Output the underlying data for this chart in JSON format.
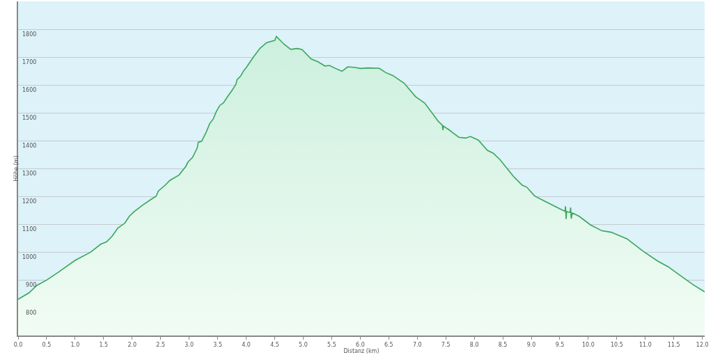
{
  "chart_data": {
    "type": "area",
    "xlabel": "Distanz (km)",
    "ylabel": "Höhe (m)",
    "x": [
      0.0,
      0.19,
      0.33,
      0.5,
      0.71,
      1.0,
      1.27,
      1.45,
      1.55,
      1.65,
      1.75,
      1.87,
      1.95,
      2.03,
      2.19,
      2.34,
      2.42,
      2.46,
      2.58,
      2.66,
      2.82,
      2.94,
      2.98,
      3.06,
      3.14,
      3.16,
      3.22,
      3.3,
      3.36,
      3.42,
      3.48,
      3.54,
      3.6,
      3.68,
      3.74,
      3.82,
      3.84,
      3.9,
      3.96,
      4.0,
      4.12,
      4.24,
      4.36,
      4.5,
      4.53,
      4.66,
      4.78,
      4.9,
      4.98,
      5.14,
      5.26,
      5.38,
      5.46,
      5.6,
      5.68,
      5.78,
      5.89,
      6.01,
      6.13,
      6.33,
      6.45,
      6.57,
      6.77,
      6.97,
      7.01,
      7.13,
      7.25,
      7.37,
      7.44,
      7.45,
      7.46,
      7.49,
      7.55,
      7.63,
      7.73,
      7.85,
      7.93,
      8.07,
      8.23,
      8.33,
      8.45,
      8.68,
      8.84,
      8.92,
      9.06,
      9.24,
      9.52,
      9.59,
      9.6,
      9.61,
      9.62,
      9.68,
      9.69,
      9.7,
      9.72,
      9.84,
      10.04,
      10.24,
      10.4,
      10.68,
      10.96,
      11.22,
      11.4,
      11.6,
      11.84,
      12.04
    ],
    "values": [
      830,
      853,
      880,
      899,
      928,
      970,
      999,
      1028,
      1036,
      1057,
      1086,
      1103,
      1128,
      1144,
      1169,
      1190,
      1200,
      1219,
      1240,
      1257,
      1276,
      1307,
      1323,
      1340,
      1373,
      1394,
      1398,
      1431,
      1461,
      1477,
      1506,
      1527,
      1535,
      1560,
      1577,
      1602,
      1619,
      1631,
      1652,
      1662,
      1698,
      1731,
      1752,
      1760,
      1774,
      1747,
      1728,
      1731,
      1727,
      1693,
      1683,
      1668,
      1670,
      1656,
      1649,
      1665,
      1663,
      1659,
      1661,
      1660,
      1644,
      1634,
      1606,
      1558,
      1552,
      1535,
      1502,
      1469,
      1455,
      1438,
      1452,
      1448,
      1440,
      1427,
      1412,
      1409,
      1415,
      1402,
      1365,
      1355,
      1332,
      1273,
      1240,
      1233,
      1201,
      1182,
      1153,
      1146,
      1164,
      1118,
      1145,
      1142,
      1160,
      1120,
      1140,
      1128,
      1097,
      1076,
      1071,
      1047,
      1003,
      967,
      947,
      917,
      882,
      857
    ],
    "color": "#3aa65a",
    "xlim": [
      0,
      12.04
    ],
    "ylim": [
      700,
      1900
    ],
    "xticks": [
      {
        "value": 0,
        "label": "0.0"
      },
      0.5,
      {
        "value": 1,
        "label": "1.0"
      },
      1.5,
      {
        "value": 2,
        "label": "2.0"
      },
      2.5,
      {
        "value": 3,
        "label": "3.0"
      },
      3.5,
      {
        "value": 4,
        "label": "4.0"
      },
      4.5,
      {
        "value": 5,
        "label": "5.0"
      },
      5.5,
      {
        "value": 6,
        "label": "6.0"
      },
      6.5,
      {
        "value": 7,
        "label": "7.0"
      },
      7.5,
      {
        "value": 8,
        "label": "8.0"
      },
      8.5,
      {
        "value": 9,
        "label": "9.0"
      },
      9.5,
      {
        "value": 10,
        "label": "10.0"
      },
      10.5,
      {
        "value": 11,
        "label": "11.0"
      },
      11.5,
      {
        "value": 12,
        "label": "12.0"
      }
    ],
    "yticks": [
      800,
      900,
      1000,
      1100,
      1200,
      1300,
      1400,
      1500,
      1600,
      1700,
      1800
    ],
    "grid": "y"
  }
}
